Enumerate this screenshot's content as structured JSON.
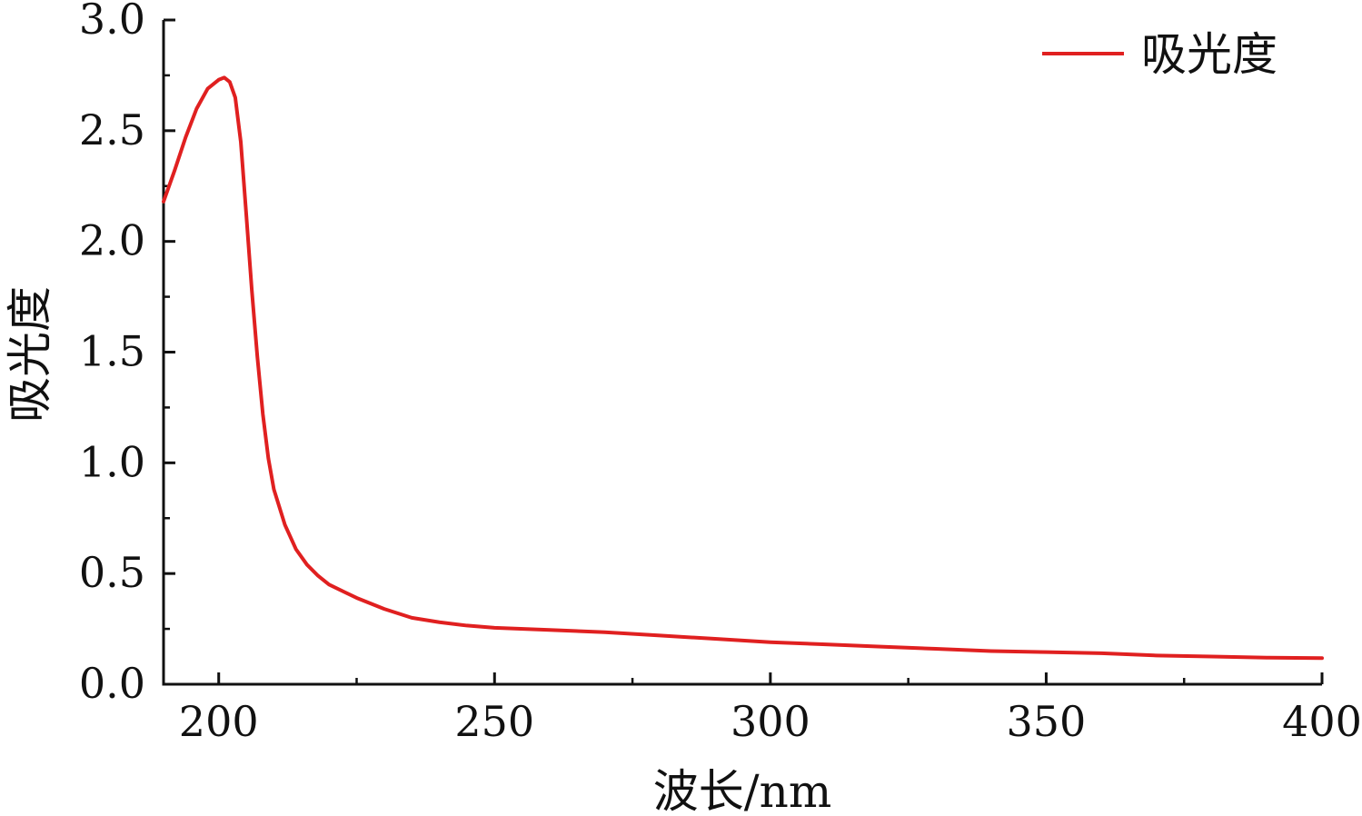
{
  "chart_data": {
    "type": "line",
    "title": "",
    "xlabel": "波长/nm",
    "ylabel": "吸光度",
    "xlim": [
      190,
      400
    ],
    "ylim": [
      0,
      3.0
    ],
    "x_ticks": [
      200,
      250,
      300,
      350,
      400
    ],
    "x_tick_labels": [
      "200",
      "250",
      "300",
      "350",
      "400"
    ],
    "x_minor_ticks": [
      225,
      275,
      325,
      375
    ],
    "y_ticks": [
      0.0,
      0.5,
      1.0,
      1.5,
      2.0,
      2.5,
      3.0
    ],
    "y_tick_labels": [
      "0.0",
      "0.5",
      "1.0",
      "1.5",
      "2.0",
      "2.5",
      "3.0"
    ],
    "y_minor_ticks": [
      0.25,
      0.75,
      1.25,
      1.75,
      2.25,
      2.75
    ],
    "grid": false,
    "legend": {
      "position": "top-right",
      "entries": [
        "吸光度"
      ]
    },
    "series": [
      {
        "name": "吸光度",
        "color": "#e02020",
        "points": [
          [
            190,
            2.18
          ],
          [
            192,
            2.32
          ],
          [
            194,
            2.47
          ],
          [
            196,
            2.6
          ],
          [
            198,
            2.69
          ],
          [
            200,
            2.73
          ],
          [
            201,
            2.74
          ],
          [
            202,
            2.72
          ],
          [
            203,
            2.65
          ],
          [
            204,
            2.45
          ],
          [
            205,
            2.12
          ],
          [
            206,
            1.78
          ],
          [
            207,
            1.48
          ],
          [
            208,
            1.22
          ],
          [
            209,
            1.02
          ],
          [
            210,
            0.88
          ],
          [
            212,
            0.72
          ],
          [
            214,
            0.61
          ],
          [
            216,
            0.54
          ],
          [
            218,
            0.49
          ],
          [
            220,
            0.45
          ],
          [
            225,
            0.39
          ],
          [
            230,
            0.34
          ],
          [
            235,
            0.3
          ],
          [
            240,
            0.28
          ],
          [
            245,
            0.265
          ],
          [
            250,
            0.255
          ],
          [
            260,
            0.245
          ],
          [
            270,
            0.235
          ],
          [
            280,
            0.22
          ],
          [
            290,
            0.205
          ],
          [
            300,
            0.19
          ],
          [
            310,
            0.18
          ],
          [
            320,
            0.17
          ],
          [
            330,
            0.16
          ],
          [
            340,
            0.15
          ],
          [
            350,
            0.145
          ],
          [
            360,
            0.14
          ],
          [
            370,
            0.13
          ],
          [
            380,
            0.125
          ],
          [
            390,
            0.12
          ],
          [
            400,
            0.118
          ]
        ]
      }
    ]
  }
}
